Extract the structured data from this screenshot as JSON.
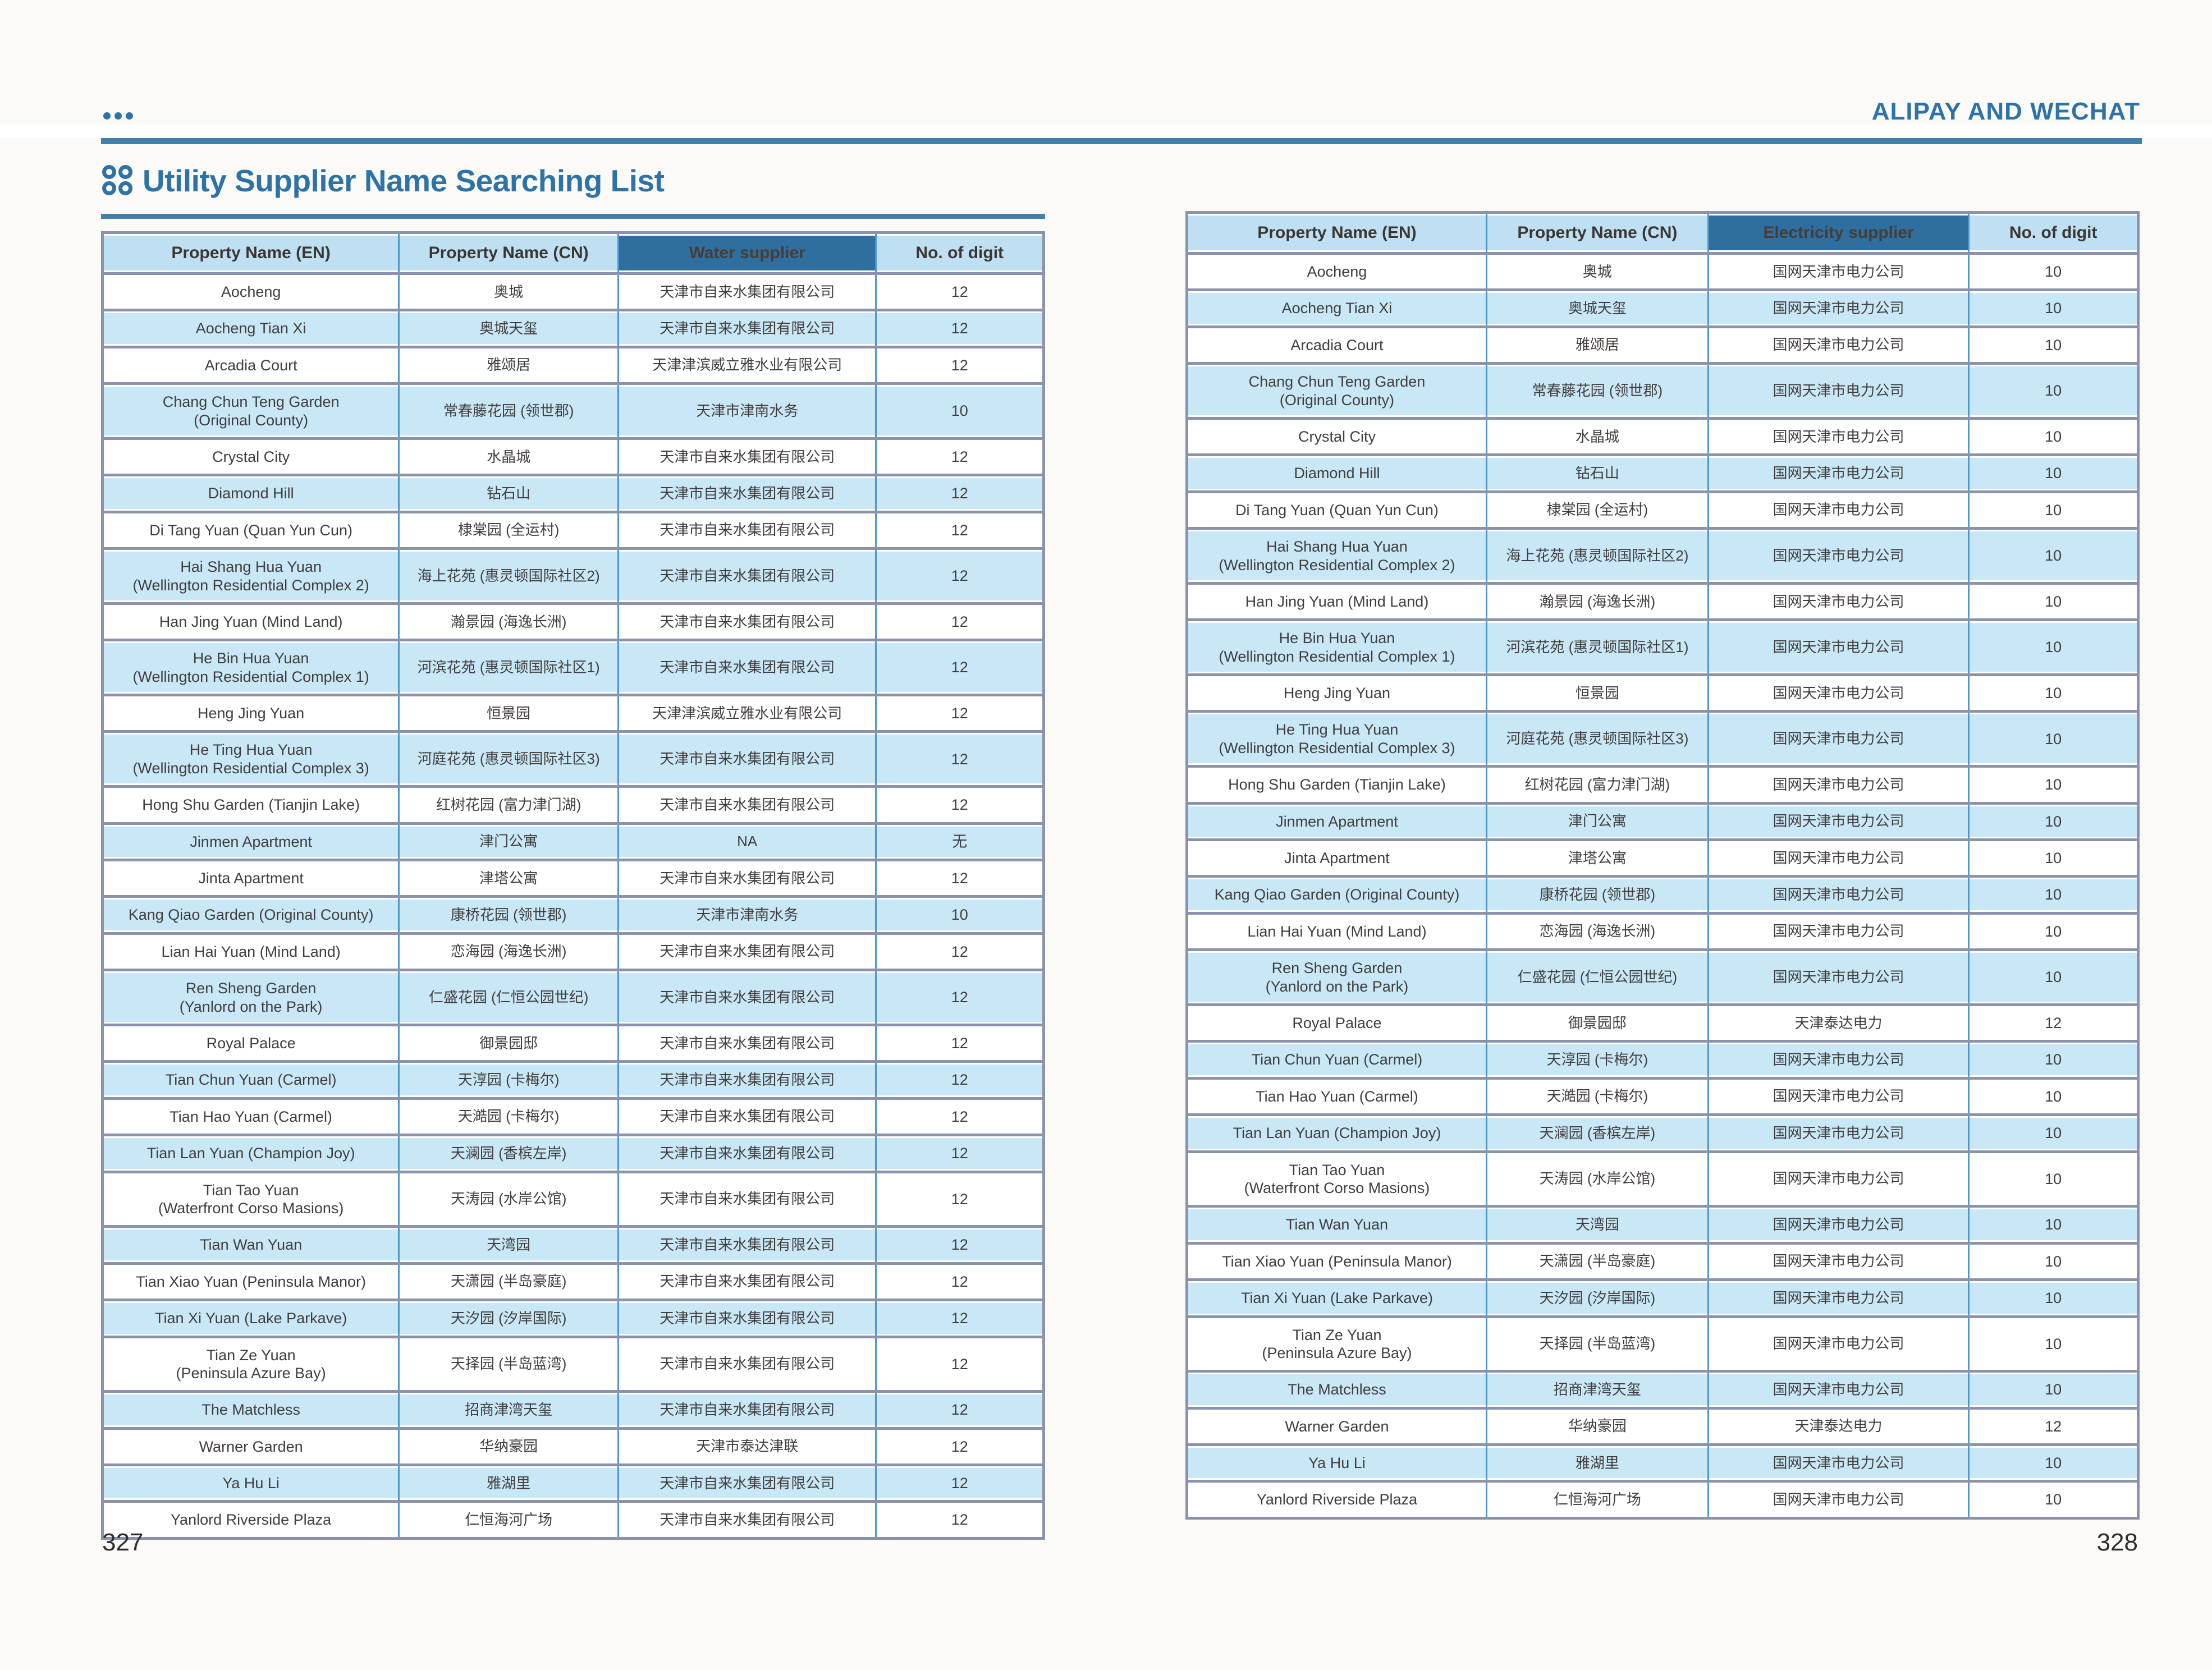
{
  "page": {
    "header_right": "ALIPAY AND WECHAT",
    "title": "Utility Supplier Name Searching List",
    "page_number_left": "327",
    "page_number_right": "328"
  },
  "icons": {
    "top_left": "ellipsis-icon",
    "title": "clover-icon"
  },
  "colors": {
    "accent_blue": "#2d73a7",
    "rule_blue": "#3f81ac",
    "header_cell_bg": "#bfe0f2",
    "highlight_header_bg": "#2f6fa0",
    "alt_row_bg": "#c8e7f7",
    "cell_border_blue": "#4e96cc",
    "row_border_slate": "#8a92ac",
    "text_dark": "#423d3b"
  },
  "tables": {
    "water": {
      "headers": [
        "Property Name (EN)",
        "Property Name (CN)",
        "Water supplier",
        "No. of digit"
      ],
      "highlight_col": 2,
      "rows": [
        {
          "en": "Aocheng",
          "cn": "奥城",
          "supplier": "天津市自来水集团有限公司",
          "digits": "12"
        },
        {
          "en": "Aocheng Tian Xi",
          "cn": "奥城天玺",
          "supplier": "天津市自来水集团有限公司",
          "digits": "12"
        },
        {
          "en": "Arcadia Court",
          "cn": "雅颂居",
          "supplier": "天津津滨威立雅水业有限公司",
          "digits": "12"
        },
        {
          "en": "Chang Chun Teng Garden\n(Original County)",
          "cn": "常春藤花园 (领世郡)",
          "supplier": "天津市津南水务",
          "digits": "10"
        },
        {
          "en": "Crystal City",
          "cn": "水晶城",
          "supplier": "天津市自来水集团有限公司",
          "digits": "12"
        },
        {
          "en": "Diamond Hill",
          "cn": "钻石山",
          "supplier": "天津市自来水集团有限公司",
          "digits": "12"
        },
        {
          "en": "Di Tang Yuan (Quan Yun Cun)",
          "cn": "棣棠园 (全运村)",
          "supplier": "天津市自来水集团有限公司",
          "digits": "12"
        },
        {
          "en": "Hai Shang Hua Yuan\n(Wellington Residential Complex 2)",
          "cn": "海上花苑 (惠灵顿国际社区2)",
          "supplier": "天津市自来水集团有限公司",
          "digits": "12"
        },
        {
          "en": "Han Jing Yuan (Mind Land)",
          "cn": "瀚景园 (海逸长洲)",
          "supplier": "天津市自来水集团有限公司",
          "digits": "12"
        },
        {
          "en": "He Bin Hua Yuan\n(Wellington Residential Complex 1)",
          "cn": "河滨花苑 (惠灵顿国际社区1)",
          "supplier": "天津市自来水集团有限公司",
          "digits": "12"
        },
        {
          "en": "Heng Jing Yuan",
          "cn": "恒景园",
          "supplier": "天津津滨威立雅水业有限公司",
          "digits": "12"
        },
        {
          "en": "He Ting Hua Yuan\n(Wellington Residential Complex 3)",
          "cn": "河庭花苑 (惠灵顿国际社区3)",
          "supplier": "天津市自来水集团有限公司",
          "digits": "12"
        },
        {
          "en": "Hong Shu Garden (Tianjin Lake)",
          "cn": "红树花园 (富力津门湖)",
          "supplier": "天津市自来水集团有限公司",
          "digits": "12"
        },
        {
          "en": "Jinmen Apartment",
          "cn": "津门公寓",
          "supplier": "NA",
          "digits": "无"
        },
        {
          "en": "Jinta Apartment",
          "cn": "津塔公寓",
          "supplier": "天津市自来水集团有限公司",
          "digits": "12"
        },
        {
          "en": "Kang Qiao Garden (Original County)",
          "cn": "康桥花园 (领世郡)",
          "supplier": "天津市津南水务",
          "digits": "10"
        },
        {
          "en": "Lian Hai Yuan (Mind Land)",
          "cn": "恋海园 (海逸长洲)",
          "supplier": "天津市自来水集团有限公司",
          "digits": "12"
        },
        {
          "en": "Ren Sheng Garden\n(Yanlord on the Park)",
          "cn": "仁盛花园 (仁恒公园世纪)",
          "supplier": "天津市自来水集团有限公司",
          "digits": "12"
        },
        {
          "en": "Royal Palace",
          "cn": "御景园邸",
          "supplier": "天津市自来水集团有限公司",
          "digits": "12"
        },
        {
          "en": "Tian Chun Yuan (Carmel)",
          "cn": "天淳园 (卡梅尔)",
          "supplier": "天津市自来水集团有限公司",
          "digits": "12"
        },
        {
          "en": "Tian Hao Yuan (Carmel)",
          "cn": "天澔园 (卡梅尔)",
          "supplier": "天津市自来水集团有限公司",
          "digits": "12"
        },
        {
          "en": "Tian Lan Yuan (Champion Joy)",
          "cn": "天澜园 (香槟左岸)",
          "supplier": "天津市自来水集团有限公司",
          "digits": "12"
        },
        {
          "en": "Tian Tao Yuan\n(Waterfront Corso Masions)",
          "cn": "天涛园 (水岸公馆)",
          "supplier": "天津市自来水集团有限公司",
          "digits": "12"
        },
        {
          "en": "Tian Wan Yuan",
          "cn": "天湾园",
          "supplier": "天津市自来水集团有限公司",
          "digits": "12"
        },
        {
          "en": "Tian Xiao Yuan (Peninsula Manor)",
          "cn": "天潇园 (半岛豪庭)",
          "supplier": "天津市自来水集团有限公司",
          "digits": "12"
        },
        {
          "en": "Tian Xi Yuan (Lake Parkave)",
          "cn": "天汐园 (汐岸国际)",
          "supplier": "天津市自来水集团有限公司",
          "digits": "12"
        },
        {
          "en": "Tian Ze Yuan\n(Peninsula Azure Bay)",
          "cn": "天择园 (半岛蓝湾)",
          "supplier": "天津市自来水集团有限公司",
          "digits": "12"
        },
        {
          "en": "The Matchless",
          "cn": "招商津湾天玺",
          "supplier": "天津市自来水集团有限公司",
          "digits": "12"
        },
        {
          "en": "Warner Garden",
          "cn": "华纳豪园",
          "supplier": "天津市泰达津联",
          "digits": "12"
        },
        {
          "en": "Ya Hu Li",
          "cn": "雅湖里",
          "supplier": "天津市自来水集团有限公司",
          "digits": "12"
        },
        {
          "en": "Yanlord Riverside Plaza",
          "cn": "仁恒海河广场",
          "supplier": "天津市自来水集团有限公司",
          "digits": "12"
        }
      ]
    },
    "electricity": {
      "headers": [
        "Property Name (EN)",
        "Property Name (CN)",
        "Electricity supplier",
        "No. of digit"
      ],
      "highlight_col": 2,
      "rows": [
        {
          "en": "Aocheng",
          "cn": "奥城",
          "supplier": "国网天津市电力公司",
          "digits": "10"
        },
        {
          "en": "Aocheng Tian Xi",
          "cn": "奥城天玺",
          "supplier": "国网天津市电力公司",
          "digits": "10"
        },
        {
          "en": "Arcadia Court",
          "cn": "雅颂居",
          "supplier": "国网天津市电力公司",
          "digits": "10"
        },
        {
          "en": "Chang Chun Teng Garden\n(Original County)",
          "cn": "常春藤花园 (领世郡)",
          "supplier": "国网天津市电力公司",
          "digits": "10"
        },
        {
          "en": "Crystal City",
          "cn": "水晶城",
          "supplier": "国网天津市电力公司",
          "digits": "10"
        },
        {
          "en": "Diamond Hill",
          "cn": "钻石山",
          "supplier": "国网天津市电力公司",
          "digits": "10"
        },
        {
          "en": "Di Tang Yuan (Quan Yun Cun)",
          "cn": "棣棠园 (全运村)",
          "supplier": "国网天津市电力公司",
          "digits": "10"
        },
        {
          "en": "Hai Shang Hua Yuan\n(Wellington Residential Complex 2)",
          "cn": "海上花苑 (惠灵顿国际社区2)",
          "supplier": "国网天津市电力公司",
          "digits": "10"
        },
        {
          "en": "Han Jing Yuan (Mind Land)",
          "cn": "瀚景园 (海逸长洲)",
          "supplier": "国网天津市电力公司",
          "digits": "10"
        },
        {
          "en": "He Bin Hua Yuan\n(Wellington Residential Complex 1)",
          "cn": "河滨花苑 (惠灵顿国际社区1)",
          "supplier": "国网天津市电力公司",
          "digits": "10"
        },
        {
          "en": "Heng Jing Yuan",
          "cn": "恒景园",
          "supplier": "国网天津市电力公司",
          "digits": "10"
        },
        {
          "en": "He Ting Hua Yuan\n(Wellington Residential Complex 3)",
          "cn": "河庭花苑 (惠灵顿国际社区3)",
          "supplier": "国网天津市电力公司",
          "digits": "10"
        },
        {
          "en": "Hong Shu Garden (Tianjin Lake)",
          "cn": "红树花园 (富力津门湖)",
          "supplier": "国网天津市电力公司",
          "digits": "10"
        },
        {
          "en": "Jinmen Apartment",
          "cn": "津门公寓",
          "supplier": "国网天津市电力公司",
          "digits": "10"
        },
        {
          "en": "Jinta Apartment",
          "cn": "津塔公寓",
          "supplier": "国网天津市电力公司",
          "digits": "10"
        },
        {
          "en": "Kang Qiao Garden (Original County)",
          "cn": "康桥花园 (领世郡)",
          "supplier": "国网天津市电力公司",
          "digits": "10"
        },
        {
          "en": "Lian Hai Yuan (Mind Land)",
          "cn": "恋海园 (海逸长洲)",
          "supplier": "国网天津市电力公司",
          "digits": "10"
        },
        {
          "en": "Ren Sheng Garden\n(Yanlord on the Park)",
          "cn": "仁盛花园 (仁恒公园世纪)",
          "supplier": "国网天津市电力公司",
          "digits": "10"
        },
        {
          "en": "Royal Palace",
          "cn": "御景园邸",
          "supplier": "天津泰达电力",
          "digits": "12"
        },
        {
          "en": "Tian Chun Yuan (Carmel)",
          "cn": "天淳园 (卡梅尔)",
          "supplier": "国网天津市电力公司",
          "digits": "10"
        },
        {
          "en": "Tian Hao Yuan (Carmel)",
          "cn": "天澔园 (卡梅尔)",
          "supplier": "国网天津市电力公司",
          "digits": "10"
        },
        {
          "en": "Tian Lan Yuan (Champion Joy)",
          "cn": "天澜园 (香槟左岸)",
          "supplier": "国网天津市电力公司",
          "digits": "10"
        },
        {
          "en": "Tian Tao Yuan\n(Waterfront Corso Masions)",
          "cn": "天涛园 (水岸公馆)",
          "supplier": "国网天津市电力公司",
          "digits": "10"
        },
        {
          "en": "Tian Wan Yuan",
          "cn": "天湾园",
          "supplier": "国网天津市电力公司",
          "digits": "10"
        },
        {
          "en": "Tian Xiao Yuan (Peninsula Manor)",
          "cn": "天潇园 (半岛豪庭)",
          "supplier": "国网天津市电力公司",
          "digits": "10"
        },
        {
          "en": "Tian Xi Yuan (Lake Parkave)",
          "cn": "天汐园 (汐岸国际)",
          "supplier": "国网天津市电力公司",
          "digits": "10"
        },
        {
          "en": "Tian Ze Yuan\n(Peninsula Azure Bay)",
          "cn": "天择园 (半岛蓝湾)",
          "supplier": "国网天津市电力公司",
          "digits": "10"
        },
        {
          "en": "The Matchless",
          "cn": "招商津湾天玺",
          "supplier": "国网天津市电力公司",
          "digits": "10"
        },
        {
          "en": "Warner Garden",
          "cn": "华纳豪园",
          "supplier": "天津泰达电力",
          "digits": "12"
        },
        {
          "en": "Ya Hu Li",
          "cn": "雅湖里",
          "supplier": "国网天津市电力公司",
          "digits": "10"
        },
        {
          "en": "Yanlord Riverside Plaza",
          "cn": "仁恒海河广场",
          "supplier": "国网天津市电力公司",
          "digits": "10"
        }
      ]
    }
  }
}
